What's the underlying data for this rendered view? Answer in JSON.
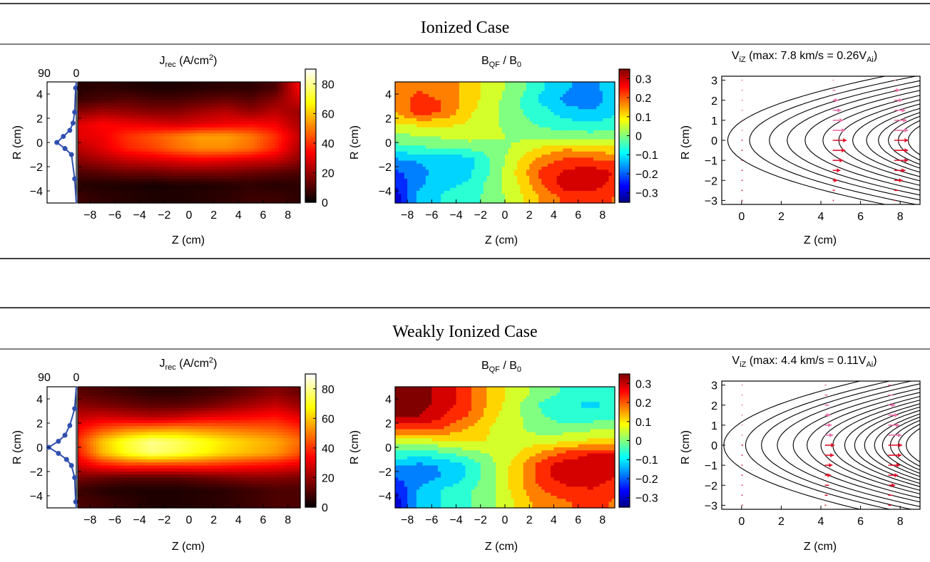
{
  "figure": {
    "sections": [
      {
        "title": "Ionized Case",
        "jrec": {
          "title_main": "J",
          "title_sub": "rec",
          "title_rest": " (A/cm",
          "title_sup": "2",
          "title_end": ")",
          "profile_top_labels": [
            "90",
            "0"
          ]
        },
        "bqf": {
          "t1": "B",
          "t1_sub": "QF",
          "t2": " / B",
          "t2_sub": "0"
        },
        "viz": {
          "t1": "V",
          "t1_sub": "iZ",
          "t2": " (max: 7.8 km/s = 0.26V",
          "t2_sub": "Ai",
          "t3": ")"
        }
      },
      {
        "title": "Weakly Ionized Case",
        "jrec": {
          "title_main": "J",
          "title_sub": "rec",
          "title_rest": " (A/cm",
          "title_sup": "2",
          "title_end": ")",
          "profile_top_labels": [
            "90",
            "0"
          ]
        },
        "bqf": {
          "t1": "B",
          "t1_sub": "QF",
          "t2": " / B",
          "t2_sub": "0"
        },
        "viz": {
          "t1": "V",
          "t1_sub": "iZ",
          "t2": " (max: 4.4 km/s = 0.11V",
          "t2_sub": "Ai",
          "t3": ")"
        }
      }
    ],
    "labels": {
      "xlabel": "Z (cm)",
      "ylabel": "R (cm)"
    }
  },
  "chart_data": [
    {
      "type": "heatmap",
      "name": "J_rec ionized",
      "xlabel": "Z (cm)",
      "ylabel": "R (cm)",
      "xlim": [
        -9,
        9
      ],
      "ylim": [
        -5,
        5
      ],
      "xticks": [
        -8,
        -6,
        -4,
        -2,
        0,
        2,
        4,
        6,
        8
      ],
      "yticks": [
        -4,
        -2,
        0,
        2,
        4
      ],
      "colorbar": {
        "range": [
          0,
          90
        ],
        "ticks": [
          0,
          20,
          40,
          60,
          80
        ],
        "colormap": "hot"
      },
      "x": [
        -9,
        -7,
        -5,
        -3,
        -1,
        1,
        3,
        5,
        7,
        9
      ],
      "y": [
        4.5,
        3.5,
        2.5,
        1.5,
        0.5,
        -0.5,
        -1.5,
        -2.5,
        -3.5,
        -4.5
      ],
      "z": [
        [
          5,
          6,
          5,
          4,
          4,
          5,
          6,
          6,
          10,
          35
        ],
        [
          8,
          10,
          12,
          10,
          10,
          12,
          14,
          12,
          18,
          28
        ],
        [
          18,
          22,
          20,
          18,
          18,
          22,
          25,
          20,
          25,
          20
        ],
        [
          30,
          34,
          32,
          30,
          28,
          30,
          32,
          34,
          32,
          22
        ],
        [
          30,
          32,
          40,
          45,
          50,
          55,
          55,
          50,
          40,
          25
        ],
        [
          24,
          30,
          38,
          42,
          48,
          52,
          52,
          48,
          38,
          22
        ],
        [
          18,
          22,
          26,
          28,
          30,
          32,
          30,
          28,
          26,
          18
        ],
        [
          10,
          12,
          14,
          14,
          16,
          16,
          16,
          14,
          12,
          10
        ],
        [
          5,
          4,
          4,
          3,
          4,
          4,
          5,
          6,
          5,
          6
        ],
        [
          8,
          6,
          5,
          4,
          4,
          5,
          6,
          8,
          8,
          6
        ]
      ],
      "profile": {
        "xlim": [
          90,
          0
        ],
        "r": [
          -3.0,
          -1.0,
          -0.5,
          0.0,
          0.5,
          1.0,
          1.6,
          2.5,
          4.5
        ],
        "value": [
          5,
          15,
          35,
          60,
          40,
          20,
          10,
          5,
          2
        ]
      }
    },
    {
      "type": "heatmap",
      "name": "B_QF/B_0 ionized",
      "xlabel": "Z (cm)",
      "ylabel": "R (cm)",
      "xlim": [
        -9,
        9
      ],
      "ylim": [
        -5,
        5
      ],
      "xticks": [
        -8,
        -6,
        -4,
        -2,
        0,
        2,
        4,
        6,
        8
      ],
      "yticks": [
        -4,
        -2,
        0,
        2,
        4
      ],
      "colorbar": {
        "range": [
          -0.35,
          0.35
        ],
        "ticks": [
          -0.3,
          -0.2,
          -0.1,
          0,
          0.1,
          0.2,
          0.3
        ],
        "colormap": "jet"
      },
      "x": [
        -9,
        -7,
        -5,
        -3,
        -1,
        1,
        3,
        5,
        7,
        9
      ],
      "y": [
        4.5,
        3.5,
        2.5,
        1.5,
        0.5,
        -0.5,
        -1.5,
        -2.5,
        -3.5,
        -4.5
      ],
      "z": [
        [
          0.18,
          0.2,
          0.18,
          0.12,
          0.06,
          0.0,
          -0.08,
          -0.14,
          -0.16,
          -0.12
        ],
        [
          0.18,
          0.22,
          0.2,
          0.12,
          0.05,
          -0.02,
          -0.1,
          -0.16,
          -0.18,
          -0.12
        ],
        [
          0.14,
          0.24,
          0.2,
          0.1,
          0.04,
          -0.02,
          -0.06,
          -0.12,
          -0.14,
          -0.1
        ],
        [
          0.08,
          0.1,
          0.1,
          0.08,
          0.04,
          0.0,
          -0.04,
          -0.06,
          -0.08,
          -0.06
        ],
        [
          0.02,
          0.02,
          0.04,
          0.06,
          0.04,
          0.02,
          0.0,
          0.0,
          0.0,
          0.0
        ],
        [
          -0.06,
          -0.04,
          -0.03,
          -0.02,
          0.0,
          0.04,
          0.1,
          0.14,
          0.12,
          0.1
        ],
        [
          -0.16,
          -0.14,
          -0.14,
          -0.12,
          -0.02,
          0.08,
          0.18,
          0.22,
          0.22,
          0.2
        ],
        [
          -0.22,
          -0.16,
          -0.12,
          -0.1,
          -0.02,
          0.1,
          0.22,
          0.28,
          0.3,
          0.26
        ],
        [
          -0.26,
          -0.16,
          -0.1,
          -0.08,
          0.0,
          0.08,
          0.2,
          0.3,
          0.3,
          0.24
        ],
        [
          -0.3,
          -0.12,
          -0.08,
          -0.06,
          0.0,
          0.06,
          0.16,
          0.22,
          0.24,
          0.2
        ]
      ]
    },
    {
      "type": "scatter",
      "name": "V_iZ ionized",
      "xlabel": "Z (cm)",
      "ylabel": "R (cm)",
      "xlim": [
        -1,
        9
      ],
      "ylim": [
        -3.2,
        3.2
      ],
      "xticks": [
        0,
        2,
        4,
        6,
        8
      ],
      "yticks": [
        -3,
        -2,
        -1,
        0,
        1,
        2,
        3
      ],
      "flux_vertex_z": [
        -0.7,
        0.4,
        1.4,
        2.3,
        3.2,
        4.1,
        4.9,
        5.6,
        6.3,
        6.9,
        7.4,
        7.9,
        8.4
      ],
      "flux_curvature": 0.14,
      "columns": [
        {
          "z": 0,
          "r": [
            -3,
            -2.5,
            -2,
            -1.5,
            -1,
            -0.5,
            0,
            0.5,
            1,
            1.5,
            2,
            2.5,
            3
          ],
          "vz": [
            0.02,
            0.02,
            0.02,
            0.02,
            0.02,
            0.02,
            0.02,
            0.02,
            0.02,
            0.02,
            0.02,
            0.02,
            0.02
          ]
        },
        {
          "z": 4.6,
          "r": [
            -3,
            -2.5,
            -2,
            -1.5,
            -1,
            -0.5,
            0,
            0.5,
            1,
            1.5,
            2,
            2.5,
            3
          ],
          "vz": [
            0.05,
            0.15,
            0.35,
            0.55,
            0.75,
            0.9,
            1.0,
            0.9,
            0.75,
            0.6,
            0.4,
            0.2,
            0.05
          ]
        },
        {
          "z": 7.7,
          "r": [
            -3,
            -2.5,
            -2,
            -1.5,
            -1,
            -0.5,
            0,
            0.5,
            1,
            1.5,
            2,
            2.5,
            3
          ],
          "vz": [
            0.1,
            0.3,
            0.6,
            0.8,
            1.0,
            1.0,
            1.0,
            1.0,
            0.9,
            0.8,
            0.6,
            0.4,
            0.1
          ]
        }
      ]
    },
    {
      "type": "heatmap",
      "name": "J_rec weakly ionized",
      "xlabel": "Z (cm)",
      "ylabel": "R (cm)",
      "xlim": [
        -9,
        9
      ],
      "ylim": [
        -5,
        5
      ],
      "xticks": [
        -8,
        -6,
        -4,
        -2,
        0,
        2,
        4,
        6,
        8
      ],
      "yticks": [
        -4,
        -2,
        0,
        2,
        4
      ],
      "colorbar": {
        "range": [
          0,
          90
        ],
        "ticks": [
          0,
          20,
          40,
          60,
          80
        ],
        "colormap": "hot"
      },
      "x": [
        -9,
        -7,
        -5,
        -3,
        -1,
        1,
        3,
        5,
        7,
        9
      ],
      "y": [
        4.5,
        3.5,
        2.5,
        1.5,
        0.5,
        -0.5,
        -1.5,
        -2.5,
        -3.5,
        -4.5
      ],
      "z": [
        [
          12,
          10,
          8,
          6,
          6,
          8,
          10,
          14,
          18,
          14
        ],
        [
          18,
          16,
          14,
          12,
          12,
          14,
          18,
          22,
          26,
          20
        ],
        [
          26,
          28,
          26,
          24,
          26,
          30,
          32,
          34,
          36,
          30
        ],
        [
          34,
          44,
          50,
          52,
          54,
          52,
          50,
          48,
          46,
          40
        ],
        [
          40,
          60,
          72,
          80,
          76,
          70,
          64,
          60,
          56,
          48
        ],
        [
          36,
          58,
          70,
          78,
          74,
          68,
          62,
          58,
          54,
          44
        ],
        [
          28,
          36,
          40,
          40,
          40,
          40,
          38,
          36,
          34,
          30
        ],
        [
          16,
          14,
          12,
          12,
          12,
          14,
          16,
          18,
          18,
          16
        ],
        [
          8,
          5,
          4,
          4,
          4,
          5,
          6,
          8,
          10,
          10
        ],
        [
          10,
          8,
          6,
          4,
          4,
          5,
          6,
          8,
          10,
          10
        ]
      ],
      "profile": {
        "xlim": [
          90,
          0
        ],
        "r": [
          -4.5,
          -2.5,
          -1.5,
          -1.0,
          -0.5,
          0.0,
          0.5,
          1.0,
          1.8,
          3.2
        ],
        "value": [
          2,
          5,
          15,
          30,
          55,
          85,
          55,
          35,
          20,
          5
        ]
      }
    },
    {
      "type": "heatmap",
      "name": "B_QF/B_0 weakly ionized",
      "xlabel": "Z (cm)",
      "ylabel": "R (cm)",
      "xlim": [
        -9,
        9
      ],
      "ylim": [
        -5,
        5
      ],
      "xticks": [
        -8,
        -6,
        -4,
        -2,
        0,
        2,
        4,
        6,
        8
      ],
      "yticks": [
        -4,
        -2,
        0,
        2,
        4
      ],
      "colorbar": {
        "range": [
          -0.35,
          0.35
        ],
        "ticks": [
          -0.3,
          -0.2,
          -0.1,
          0,
          0.1,
          0.2,
          0.3
        ],
        "colormap": "jet"
      },
      "x": [
        -9,
        -7,
        -5,
        -3,
        -1,
        1,
        3,
        5,
        7,
        9
      ],
      "y": [
        4.5,
        3.5,
        2.5,
        1.5,
        0.5,
        -0.5,
        -1.5,
        -2.5,
        -3.5,
        -4.5
      ],
      "z": [
        [
          0.34,
          0.34,
          0.3,
          0.22,
          0.12,
          0.06,
          0.0,
          -0.04,
          -0.06,
          -0.06
        ],
        [
          0.34,
          0.34,
          0.3,
          0.22,
          0.12,
          0.04,
          -0.04,
          -0.08,
          -0.1,
          -0.08
        ],
        [
          0.32,
          0.32,
          0.26,
          0.2,
          0.1,
          0.04,
          -0.02,
          -0.06,
          -0.06,
          -0.04
        ],
        [
          0.22,
          0.22,
          0.2,
          0.14,
          0.08,
          0.04,
          0.0,
          0.0,
          0.02,
          0.02
        ],
        [
          0.04,
          0.06,
          0.08,
          0.1,
          0.08,
          0.06,
          0.06,
          0.08,
          0.1,
          0.1
        ],
        [
          -0.04,
          -0.06,
          -0.04,
          0.0,
          0.04,
          0.08,
          0.16,
          0.22,
          0.26,
          0.26
        ],
        [
          -0.14,
          -0.16,
          -0.14,
          -0.08,
          0.02,
          0.12,
          0.24,
          0.3,
          0.3,
          0.28
        ],
        [
          -0.2,
          -0.18,
          -0.14,
          -0.08,
          0.02,
          0.12,
          0.24,
          0.3,
          0.3,
          0.26
        ],
        [
          -0.26,
          -0.14,
          -0.08,
          -0.04,
          0.02,
          0.12,
          0.2,
          0.24,
          0.26,
          0.22
        ],
        [
          -0.3,
          -0.12,
          -0.08,
          -0.04,
          0.02,
          0.1,
          0.18,
          0.2,
          0.22,
          0.2
        ]
      ]
    },
    {
      "type": "scatter",
      "name": "V_iZ weakly ionized",
      "xlabel": "Z (cm)",
      "ylabel": "R (cm)",
      "xlim": [
        -1,
        9
      ],
      "ylim": [
        -3.2,
        3.2
      ],
      "xticks": [
        0,
        2,
        4,
        6,
        8
      ],
      "yticks": [
        -3,
        -2,
        -1,
        0,
        1,
        2,
        3
      ],
      "flux_vertex_z": [
        -0.9,
        0.2,
        1.0,
        1.8,
        2.6,
        3.3,
        4.0,
        4.6,
        5.2,
        5.7,
        6.2,
        6.7,
        7.1,
        7.5,
        7.9,
        8.3
      ],
      "flux_curvature": 0.16,
      "columns": [
        {
          "z": 0,
          "r": [
            -3,
            -2.5,
            -2,
            -1.5,
            -1,
            -0.5,
            0,
            0.5,
            1,
            1.5,
            2,
            2.5,
            3
          ],
          "vz": [
            0.05,
            0.05,
            0.05,
            0.05,
            0.05,
            0.08,
            0.1,
            0.08,
            0.05,
            0.05,
            0.05,
            0.05,
            0.05
          ]
        },
        {
          "z": 4.2,
          "r": [
            -3,
            -2.5,
            -2,
            -1.5,
            -1,
            -0.5,
            0,
            0.5,
            1,
            1.5,
            2,
            2.5,
            3
          ],
          "vz": [
            0.1,
            0.2,
            0.3,
            0.45,
            0.55,
            0.65,
            0.7,
            0.6,
            0.5,
            0.4,
            0.3,
            0.2,
            0.1
          ]
        },
        {
          "z": 7.4,
          "r": [
            -3,
            -2.5,
            -2,
            -1.5,
            -1,
            -0.5,
            0,
            0.5,
            1,
            1.5,
            2,
            2.5,
            3
          ],
          "vz": [
            0.2,
            0.3,
            0.5,
            0.7,
            0.85,
            0.95,
            1.0,
            0.95,
            0.8,
            0.7,
            0.5,
            0.3,
            0.2
          ]
        }
      ]
    }
  ]
}
